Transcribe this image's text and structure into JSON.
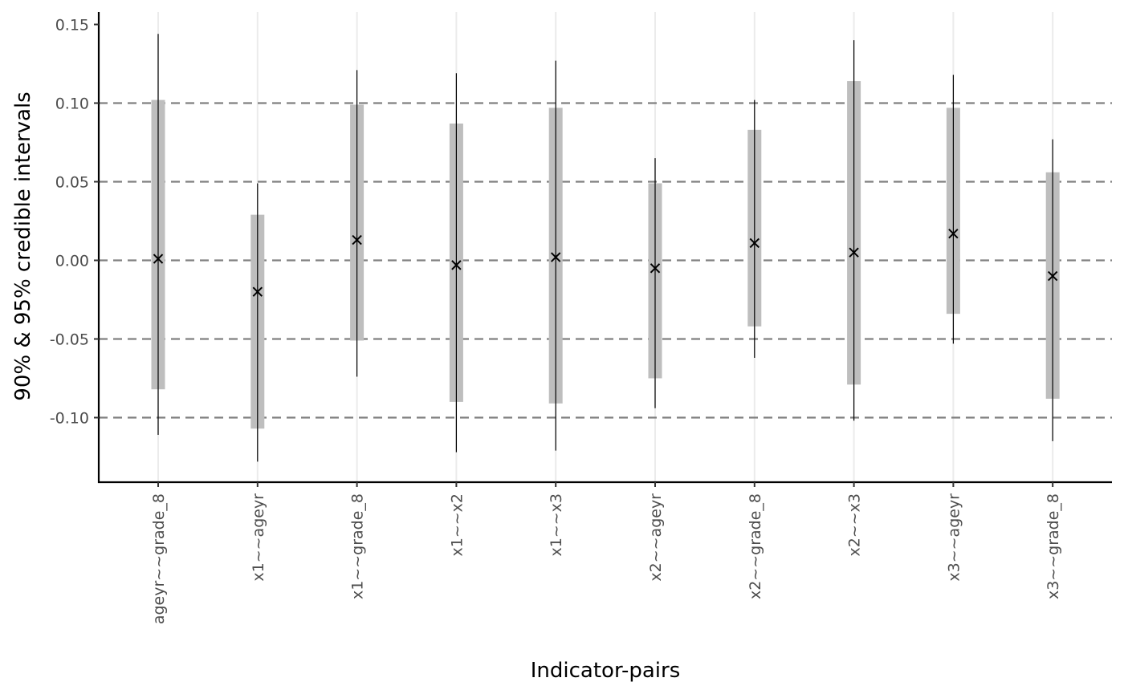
{
  "chart_data": {
    "type": "interval",
    "xlabel": "Indicator-pairs",
    "ylabel": "90% & 95% credible intervals",
    "ylim": [
      -0.14,
      0.157
    ],
    "y_ticks": [
      0.15,
      0.1,
      0.05,
      0.0,
      -0.05,
      -0.1
    ],
    "y_tick_labels": [
      "0.15",
      "0.10",
      "0.05",
      "0.00",
      "-0.05",
      "-0.10"
    ],
    "reference_lines": [
      0.1,
      0.05,
      0.0,
      -0.05,
      -0.1
    ],
    "categories": [
      "ageyr~~grade_8",
      "x1~~ageyr",
      "x1~~grade_8",
      "x1~~x2",
      "x1~~x3",
      "x2~~ageyr",
      "x2~~grade_8",
      "x2~~x3",
      "x3~~ageyr",
      "x3~~grade_8"
    ],
    "point_estimate": [
      0.001,
      -0.02,
      0.013,
      -0.003,
      0.002,
      -0.005,
      0.011,
      0.005,
      0.017,
      -0.01
    ],
    "interval_90": [
      [
        -0.082,
        0.102
      ],
      [
        -0.107,
        0.029
      ],
      [
        -0.051,
        0.099
      ],
      [
        -0.09,
        0.087
      ],
      [
        -0.091,
        0.097
      ],
      [
        -0.075,
        0.049
      ],
      [
        -0.042,
        0.083
      ],
      [
        -0.079,
        0.114
      ],
      [
        -0.034,
        0.097
      ],
      [
        -0.088,
        0.056
      ]
    ],
    "interval_95": [
      [
        -0.111,
        0.144
      ],
      [
        -0.128,
        0.049
      ],
      [
        -0.074,
        0.121
      ],
      [
        -0.122,
        0.119
      ],
      [
        -0.121,
        0.127
      ],
      [
        -0.094,
        0.065
      ],
      [
        -0.062,
        0.102
      ],
      [
        -0.102,
        0.14
      ],
      [
        -0.053,
        0.118
      ],
      [
        -0.115,
        0.077
      ]
    ],
    "grid": "vertical-major",
    "colors": {
      "interval_90": "#bebebe",
      "interval_95": "#000000",
      "point": "#000000",
      "reference_line": "#808080",
      "grid": "#ebebeb",
      "axis": "#000000",
      "tick_label": "#4d4d4d"
    }
  }
}
